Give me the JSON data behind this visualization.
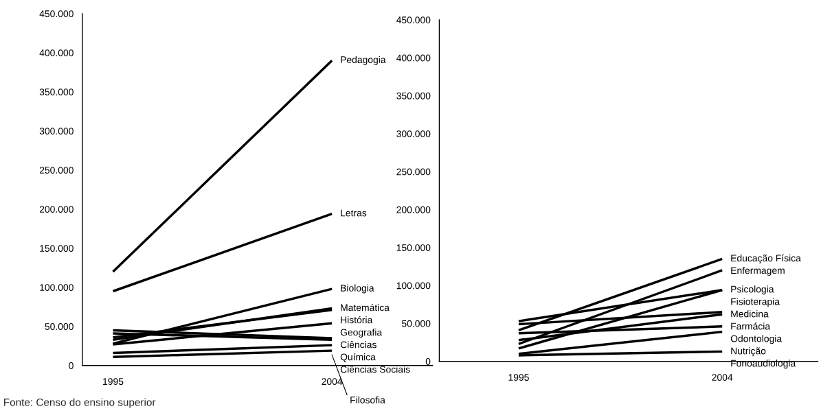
{
  "chart_data": [
    {
      "type": "line",
      "categories": [
        "1995",
        "2004"
      ],
      "ylim": [
        0,
        450000
      ],
      "yticks": [
        {
          "value": 0,
          "label": "0"
        },
        {
          "value": 50000,
          "label": "50.000"
        },
        {
          "value": 100000,
          "label": "100.000"
        },
        {
          "value": 150000,
          "label": "150.000"
        },
        {
          "value": 200000,
          "label": "200.000"
        },
        {
          "value": 250000,
          "label": "250.000"
        },
        {
          "value": 300000,
          "label": "300.000"
        },
        {
          "value": 350000,
          "label": "350.000"
        },
        {
          "value": 400000,
          "label": "400.000"
        },
        {
          "value": 450000,
          "label": "450.000"
        }
      ],
      "series": [
        {
          "name": "Pedagogia",
          "color": "#000000",
          "values": [
            120000,
            390000
          ]
        },
        {
          "name": "Letras",
          "color": "#000000",
          "values": [
            95000,
            194000
          ]
        },
        {
          "name": "Biologia",
          "color": "#000000",
          "values": [
            28000,
            98000
          ]
        },
        {
          "name": "Matemática",
          "color": "#000000",
          "values": [
            33000,
            73000
          ]
        },
        {
          "name": "História",
          "color": "#000000",
          "values": [
            36000,
            71000
          ]
        },
        {
          "name": "Geografia",
          "color": "#000000",
          "values": [
            27000,
            54000
          ]
        },
        {
          "name": "Ciências",
          "color": "#000000",
          "values": [
            45000,
            35000
          ]
        },
        {
          "name": "Química",
          "color": "#000000",
          "values": [
            41000,
            33000
          ]
        },
        {
          "name": "Ciências Sociais",
          "color": "#000000",
          "values": [
            16000,
            26000
          ]
        },
        {
          "name": "Filosofia",
          "color": "#000000",
          "values": [
            11000,
            19000
          ]
        }
      ],
      "annotations": [
        "Fonte: Censo do ensino superior"
      ]
    },
    {
      "type": "line",
      "categories": [
        "1995",
        "2004"
      ],
      "ylim": [
        0,
        450000
      ],
      "yticks": [
        {
          "value": 0,
          "label": "0"
        },
        {
          "value": 50000,
          "label": "50.000"
        },
        {
          "value": 100000,
          "label": "100.000"
        },
        {
          "value": 150000,
          "label": "150.000"
        },
        {
          "value": 200000,
          "label": "200.000"
        },
        {
          "value": 250000,
          "label": "250.000"
        },
        {
          "value": 300000,
          "label": "300.000"
        },
        {
          "value": 350000,
          "label": "350.000"
        },
        {
          "value": 400000,
          "label": "400.000"
        },
        {
          "value": 450000,
          "label": "450.000"
        }
      ],
      "series": [
        {
          "name": "Educação Física",
          "color": "#000000",
          "values": [
            41000,
            135000
          ]
        },
        {
          "name": "Enfermagem",
          "color": "#000000",
          "values": [
            23000,
            120000
          ]
        },
        {
          "name": "Psicologia",
          "color": "#000000",
          "values": [
            53000,
            94000
          ]
        },
        {
          "name": "Fisioterapia",
          "color": "#000000",
          "values": [
            17000,
            94000
          ]
        },
        {
          "name": "Medicina",
          "color": "#000000",
          "values": [
            49000,
            65000
          ]
        },
        {
          "name": "Farmácia",
          "color": "#000000",
          "values": [
            28000,
            62000
          ]
        },
        {
          "name": "Odontologia",
          "color": "#000000",
          "values": [
            37000,
            46000
          ]
        },
        {
          "name": "Nutrição",
          "color": "#000000",
          "values": [
            10000,
            39000
          ]
        },
        {
          "name": "Fonoaudiologia",
          "color": "#000000",
          "values": [
            8000,
            13000
          ]
        }
      ]
    }
  ]
}
